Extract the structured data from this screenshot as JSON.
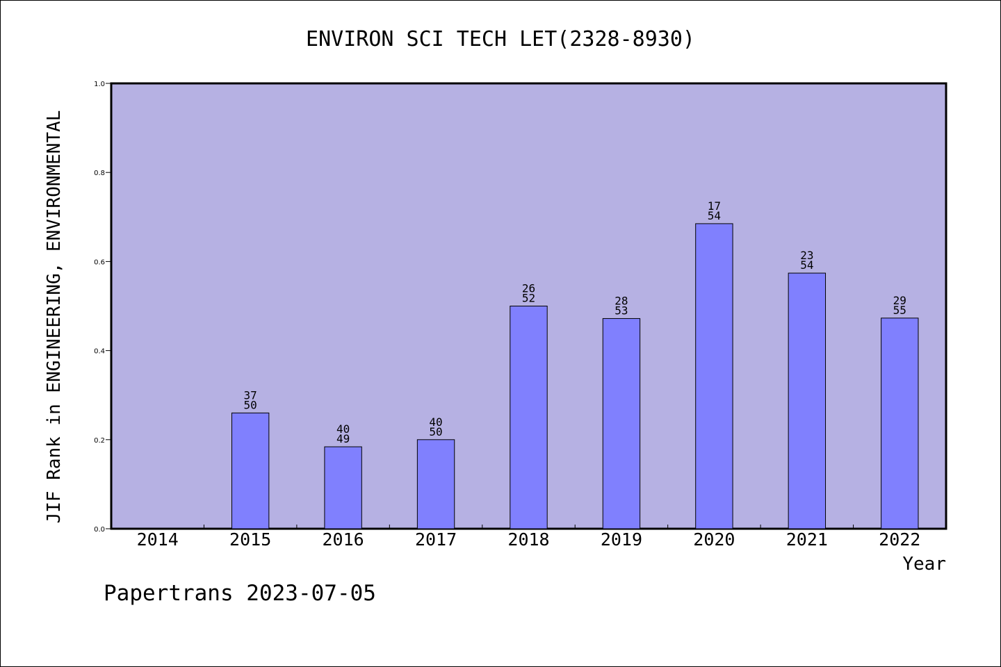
{
  "chart_data": {
    "type": "bar",
    "title": "ENVIRON SCI TECH LET(2328-8930)",
    "xlabel": "Year",
    "ylabel": "JIF Rank in ENGINEERING, ENVIRONMENTAL",
    "categories": [
      "2014",
      "2015",
      "2016",
      "2017",
      "2018",
      "2019",
      "2020",
      "2021",
      "2022"
    ],
    "values": [
      null,
      0.26,
      0.184,
      0.2,
      0.5,
      0.472,
      0.685,
      0.574,
      0.473
    ],
    "rank": [
      null,
      "37",
      "40",
      "40",
      "26",
      "28",
      "17",
      "23",
      "29"
    ],
    "total": [
      null,
      "50",
      "49",
      "50",
      "52",
      "53",
      "54",
      "54",
      "55"
    ],
    "ylim": [
      0,
      1.0
    ],
    "yticks": [
      "0.0",
      "0.2",
      "0.4",
      "0.6",
      "0.8",
      "1.0"
    ],
    "colors": {
      "plot_background": "#b6b1e3",
      "bar_fill": "#8080fe",
      "bar_stroke": "#000000"
    },
    "grid": false,
    "legend": "none"
  },
  "footer": {
    "watermark": "Papertrans 2023-07-05"
  }
}
